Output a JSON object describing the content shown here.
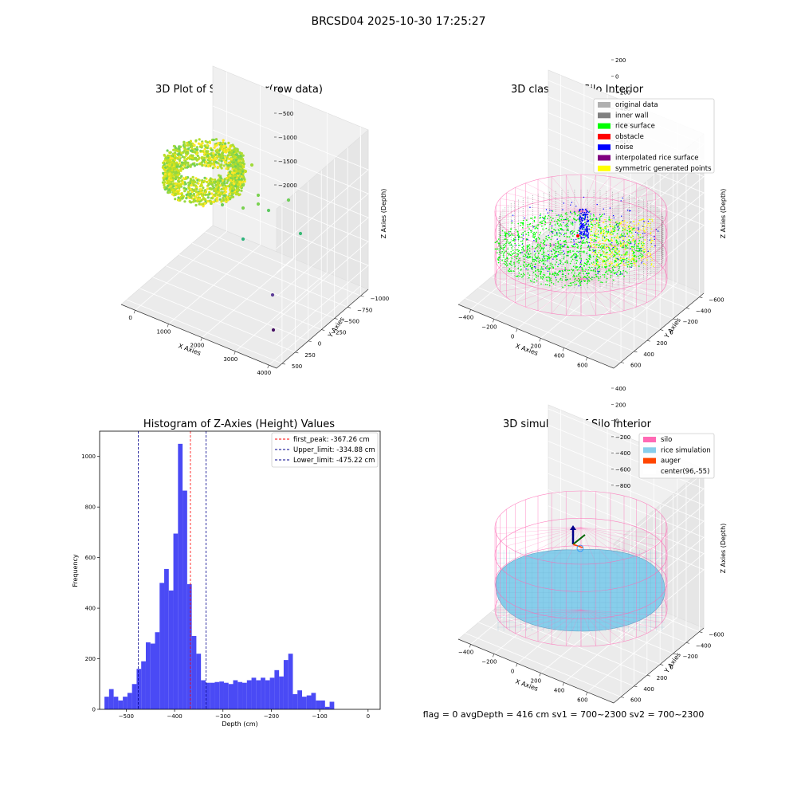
{
  "suptitle": "BRCSD04 2025-10-30 17:25:27",
  "status_line": "flag = 0     avgDepth = 416 cm  sv1 = 700~2300  sv2 = 700~2300",
  "chart_data": [
    {
      "type": "scatter",
      "subtype": "3d",
      "title": "3D Plot of Silo Interior(row data)",
      "xlabel": "X Axies",
      "ylabel": "Y Axies",
      "zlabel": "Z Axies (Depth)",
      "x_ticks": [
        "0",
        "1000",
        "2000",
        "3000",
        "4000"
      ],
      "y_ticks": [
        "500",
        "250",
        "0",
        "−250",
        "−500",
        "−750",
        "−1000"
      ],
      "z_ticks": [
        "0",
        "−500",
        "−1000",
        "−1500",
        "−2000"
      ],
      "colormap": "viridis",
      "colors": {
        "dense": "#b9e11f",
        "mid": "#7ad151",
        "low": "#22a884",
        "deep": "#440154"
      }
    },
    {
      "type": "scatter",
      "subtype": "3d",
      "title": "3D classify of Silo Interior",
      "xlabel": "X Axies",
      "ylabel": "Y Axies",
      "zlabel": "Z Axies (Depth)",
      "x_ticks": [
        "−400",
        "−200",
        "0",
        "200",
        "400",
        "600"
      ],
      "y_ticks": [
        "600",
        "400",
        "200",
        "0",
        "−200",
        "−400",
        "−600"
      ],
      "z_ticks": [
        "200",
        "0",
        "−200",
        "−400",
        "−600",
        "−800"
      ],
      "legend_position": "top-right",
      "legend": [
        {
          "label": "original data",
          "color": "#b0b0b0"
        },
        {
          "label": "inner wall",
          "color": "#808080"
        },
        {
          "label": "rice surface",
          "color": "#00ff00"
        },
        {
          "label": "obstacle",
          "color": "#ff0000"
        },
        {
          "label": "noise",
          "color": "#0000ff"
        },
        {
          "label": "interpolated rice surface",
          "color": "#800080"
        },
        {
          "label": "symmetric generated points",
          "color": "#ffff00"
        }
      ],
      "silo_color": "#ff69b4"
    },
    {
      "type": "bar",
      "subtype": "histogram",
      "title": "Histogram of Z-Axies (Height) Values",
      "xlabel": "Depth (cm)",
      "ylabel": "Frequency",
      "xlim": [
        -555,
        25
      ],
      "ylim": [
        0,
        1100
      ],
      "x_ticks": [
        -500,
        -400,
        -300,
        -200,
        -100,
        0
      ],
      "y_ticks": [
        0,
        200,
        400,
        600,
        800,
        1000
      ],
      "bar_color": "#4a4af5",
      "bin_width": 9.5,
      "bin_start": -545,
      "values": [
        50,
        80,
        50,
        35,
        50,
        65,
        100,
        160,
        190,
        265,
        260,
        305,
        500,
        555,
        470,
        695,
        1050,
        865,
        495,
        290,
        220,
        115,
        105,
        105,
        108,
        110,
        105,
        100,
        115,
        108,
        105,
        115,
        125,
        115,
        125,
        115,
        125,
        155,
        130,
        195,
        220,
        60,
        75,
        50,
        55,
        65,
        35,
        35,
        10,
        30
      ],
      "lines": [
        {
          "name": "first_peak",
          "label": "first_peak: -367.26 cm",
          "x": -367.26,
          "color": "#ff0000"
        },
        {
          "name": "upper-limit",
          "label": "Upper_limit: -334.88 cm",
          "x": -334.88,
          "color": "#00008b"
        },
        {
          "name": "lower-limit",
          "label": "Lower_limit: -475.22 cm",
          "x": -475.22,
          "color": "#00008b"
        }
      ],
      "legend_position": "top-right"
    },
    {
      "type": "scatter",
      "subtype": "3d-surface",
      "title": "3D simulation of Silo Interior",
      "xlabel": "X Axies",
      "ylabel": "Y Axies",
      "zlabel": "Z Axies (Depth)",
      "x_ticks": [
        "−400",
        "−200",
        "0",
        "200",
        "400",
        "600"
      ],
      "y_ticks": [
        "600",
        "400",
        "200",
        "0",
        "−200",
        "−400",
        "−600"
      ],
      "z_ticks": [
        "400",
        "200",
        "0",
        "−200",
        "−400",
        "−600",
        "−800"
      ],
      "legend_position": "top-right",
      "legend": [
        {
          "label": "silo",
          "color": "#ff69b4"
        },
        {
          "label": "rice simulation",
          "color": "#87ceeb"
        },
        {
          "label": "auger",
          "color": "#ff4500"
        },
        {
          "label": "center(96,-55)",
          "color": "#ffffff"
        }
      ]
    }
  ]
}
